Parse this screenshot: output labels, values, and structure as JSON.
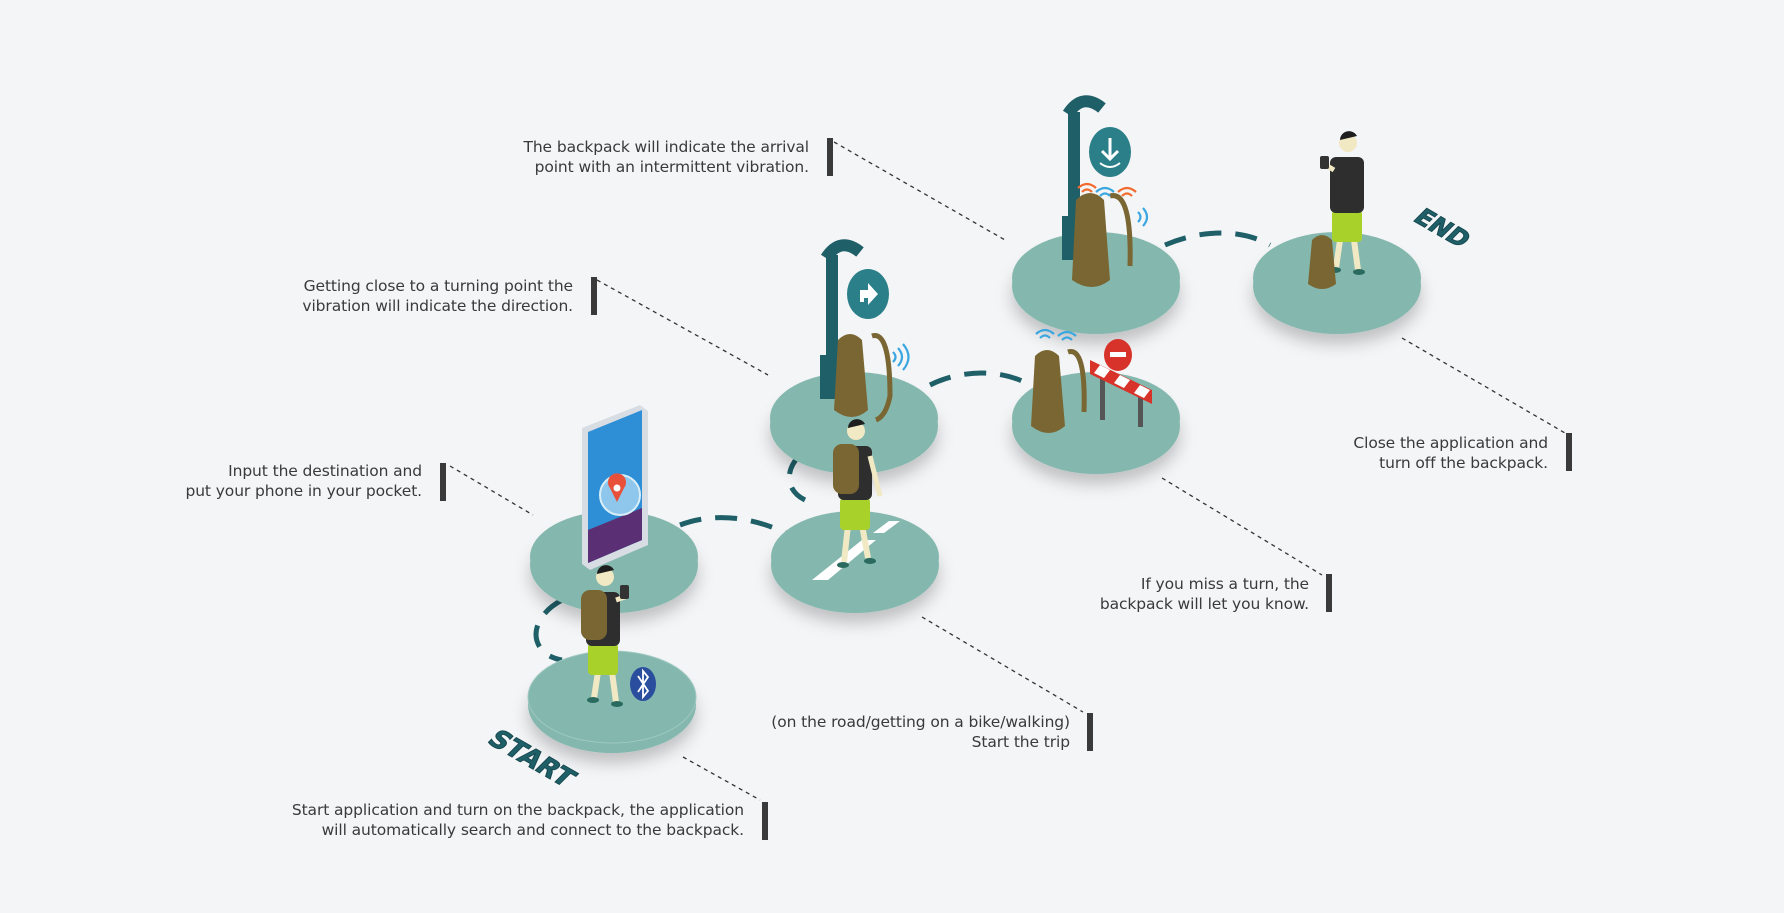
{
  "steps": {
    "start_app": {
      "lines": [
        "Start application and turn on the backpack, the application",
        "will automatically search and connect to the backpack."
      ]
    },
    "input_destination": {
      "lines": [
        "Input the destination and",
        "put your phone in your pocket."
      ]
    },
    "start_trip": {
      "lines": [
        "(on the road/getting on a bike/walking)",
        "Start the trip"
      ]
    },
    "turning_point": {
      "lines": [
        "Getting close to a turning point the",
        "vibration will indicate the direction."
      ]
    },
    "missed_turn": {
      "lines": [
        "If you miss a turn, the",
        "backpack will let you know."
      ]
    },
    "arrival": {
      "lines": [
        "The backpack will indicate the arrival",
        "point with an intermittent vibration."
      ]
    },
    "close_app": {
      "lines": [
        "Close the application and",
        "turn off the backpack."
      ]
    }
  },
  "markers": {
    "start": "START",
    "end": "END"
  },
  "colors": {
    "background": "#f4f5f7",
    "platform": "#84b8ae",
    "teal_dark": "#1f5f68",
    "backpack": "#7a6632",
    "shorts": "#a8d12a",
    "shirt": "#2e2e2e",
    "text": "#3a3a3a",
    "wave_blue": "#3aa7e0",
    "wave_orange": "#f26a2e",
    "barrier_red": "#d8332a",
    "bluetooth": "#2a4d9e"
  },
  "icons": [
    "smartphone-map-icon",
    "bluetooth-icon",
    "turn-arrow-sign-icon",
    "arrival-sign-icon",
    "vibration-waves-icon",
    "roadblock-icon"
  ]
}
